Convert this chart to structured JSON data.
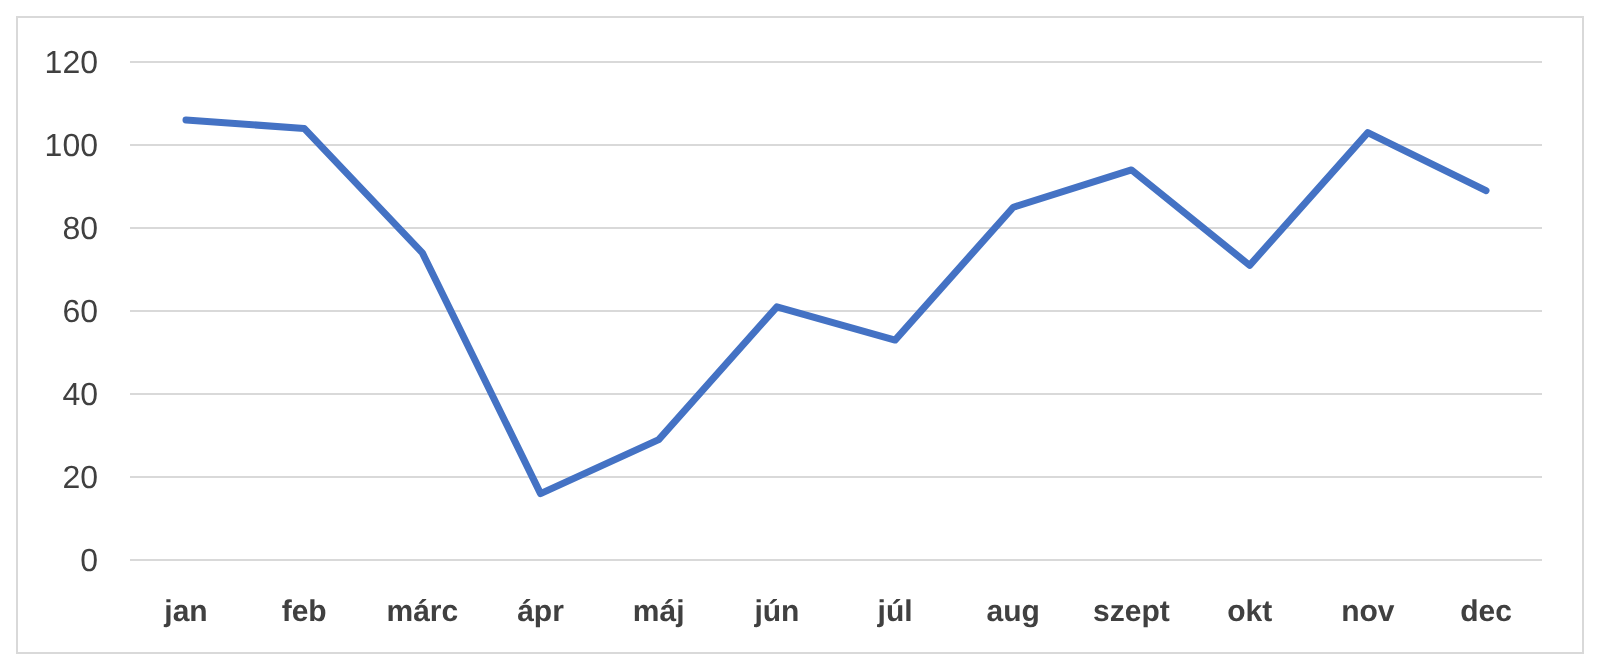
{
  "chart_data": {
    "type": "line",
    "categories": [
      "jan",
      "feb",
      "márc",
      "ápr",
      "máj",
      "jún",
      "júl",
      "aug",
      "szept",
      "okt",
      "nov",
      "dec"
    ],
    "series": [
      {
        "color": "#4472c4",
        "values": [
          106,
          104,
          74,
          16,
          29,
          61,
          53,
          85,
          94,
          71,
          103,
          89
        ]
      }
    ],
    "ylim": [
      0,
      120
    ],
    "yticks": [
      0,
      20,
      40,
      60,
      80,
      100,
      120
    ],
    "grid": "y",
    "marker": "none",
    "line_style": "solid"
  }
}
